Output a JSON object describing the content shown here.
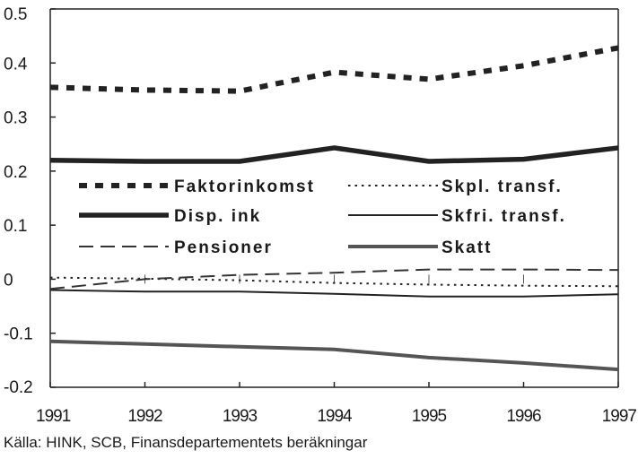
{
  "chart_data": {
    "type": "line",
    "x": [
      1991,
      1992,
      1993,
      1994,
      1995,
      1996,
      1997
    ],
    "ylim": [
      -0.2,
      0.5
    ],
    "yticks": [
      0.5,
      0.4,
      0.3,
      0.2,
      0.1,
      0,
      -0.1,
      -0.2
    ],
    "ytick_labels": [
      "0.5",
      "0.4",
      "0.3",
      "0.2",
      "0.1",
      "0",
      "-0.1",
      "-0.2"
    ],
    "xtick_labels": [
      "1991",
      "1992",
      "1993",
      "1994",
      "1995",
      "1996",
      "1997"
    ],
    "grid": false,
    "legend_placement": "center-left, inside plot",
    "series": [
      {
        "name": "Faktorinkomst",
        "style": "thick-dotted",
        "color": "#222222",
        "values": [
          0.355,
          0.35,
          0.348,
          0.383,
          0.37,
          0.395,
          0.428
        ]
      },
      {
        "name": "Skpl. transf.",
        "style": "thin-dotted",
        "color": "#222222",
        "values": [
          0.003,
          0.001,
          -0.002,
          -0.007,
          -0.01,
          -0.012,
          -0.013
        ]
      },
      {
        "name": "Disp. ink",
        "style": "thick-solid",
        "color": "#222222",
        "values": [
          0.22,
          0.218,
          0.218,
          0.243,
          0.218,
          0.222,
          0.243
        ]
      },
      {
        "name": "Skfri. transf.",
        "style": "thin-solid",
        "color": "#222222",
        "values": [
          -0.02,
          -0.023,
          -0.023,
          -0.027,
          -0.032,
          -0.032,
          -0.028
        ]
      },
      {
        "name": "Pensioner",
        "style": "dashed",
        "color": "#333333",
        "values": [
          -0.018,
          0.0,
          0.008,
          0.012,
          0.018,
          0.018,
          0.017
        ]
      },
      {
        "name": "Skatt",
        "style": "gray-solid",
        "color": "#555555",
        "values": [
          -0.115,
          -0.12,
          -0.125,
          -0.13,
          -0.145,
          -0.155,
          -0.167
        ]
      }
    ],
    "source": "Källa: HINK, SCB, Finansdepartementets beräkningar"
  }
}
